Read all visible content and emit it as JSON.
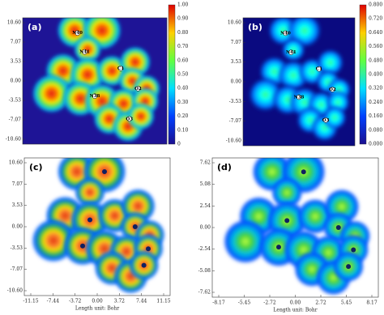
{
  "panels": [
    {
      "label": "(a)",
      "yticks": [
        "10.60",
        "7.07",
        "3.53",
        "0.00",
        "-3.53",
        "-7.07",
        "-10.60"
      ],
      "colorbar": [
        "1.00",
        "0.90",
        "0.80",
        "0.70",
        "0.60",
        "0.50",
        "0.40",
        "0.30",
        "0.20",
        "0.10",
        "0"
      ],
      "atoms": [
        "N40",
        "N41",
        "C1",
        "O2",
        "N38",
        "O3"
      ]
    },
    {
      "label": "(b)",
      "yticks": [
        "10.60",
        "7.07",
        "3.53",
        "0.00",
        "-3.53",
        "-7.07",
        "-10.60"
      ],
      "colorbar": [
        "0.800",
        "0.720",
        "0.640",
        "0.560",
        "0.480",
        "0.400",
        "0.320",
        "0.240",
        "0.160",
        "0.080",
        "0.000"
      ],
      "atoms": [
        "N40",
        "N41",
        "C1",
        "O2",
        "N38",
        "O3"
      ]
    },
    {
      "label": "(c)",
      "yticks": [
        "10.60",
        "7.07",
        "3.53",
        "0.00",
        "-3.53",
        "-7.07",
        "-10.60"
      ],
      "xticks": [
        "-11.15",
        "-7.44",
        "-3.72",
        "0.00",
        "3.72",
        "7.44",
        "11.15"
      ],
      "xlabel": "Length unit: Bohr"
    },
    {
      "label": "(d)",
      "yticks": [
        "7.62",
        "5.08",
        "2.54",
        "0.00",
        "-2.54",
        "-5.08",
        "-7.62"
      ],
      "xticks": [
        "-8.17",
        "-5.45",
        "-2.72",
        "0.00",
        "2.72",
        "5.45",
        "8.17"
      ],
      "xlabel": "Length unit: Bohr"
    }
  ]
}
